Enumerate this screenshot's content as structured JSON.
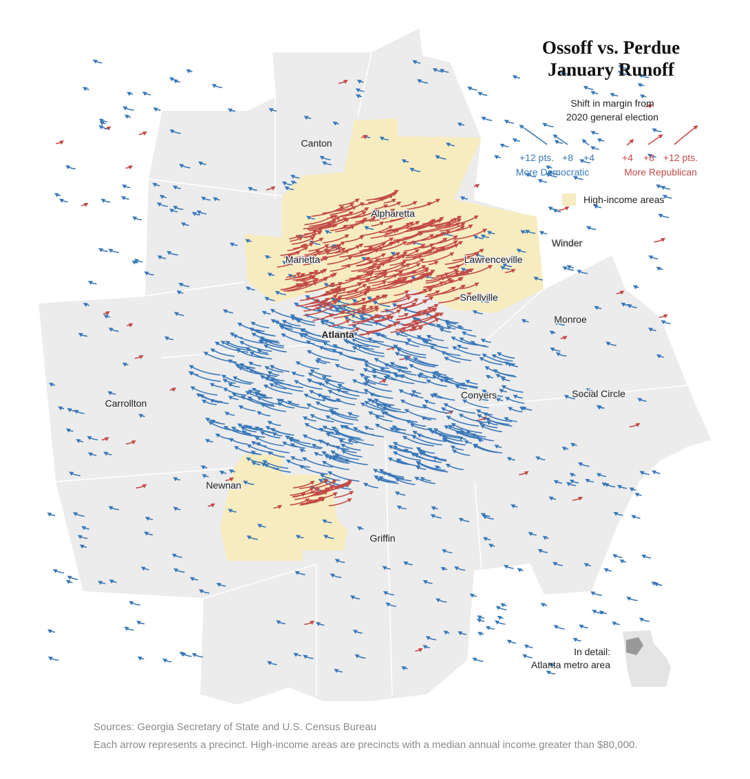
{
  "title": [
    "Ossoff vs. Perdue",
    "January Runoff"
  ],
  "legend": {
    "heading": [
      "Shift in margin from",
      "2020 general election"
    ],
    "democratic": {
      "ticks": [
        "+12 pts.",
        "+8",
        "+4"
      ],
      "label": "More Democratic"
    },
    "republican": {
      "ticks": [
        "+4",
        "+8",
        "+12 pts."
      ],
      "label": "More Republican"
    },
    "high_income": "High-income areas"
  },
  "cities": [
    "Canton",
    "Alpharetta",
    "Marietta",
    "Lawrenceville",
    "Winder",
    "Snellville",
    "Monroe",
    "Atlanta",
    "Carrollton",
    "Conyers",
    "Social Circle",
    "Newnan",
    "Griffin"
  ],
  "inset": [
    "In detail:",
    "Atlanta metro area"
  ],
  "footer": {
    "source": "Sources: Georgia Secretary of State and U.S. Census Bureau",
    "note": "Each arrow represents a precinct. High-income areas are precincts with a median annual income greater than $80,000."
  }
}
